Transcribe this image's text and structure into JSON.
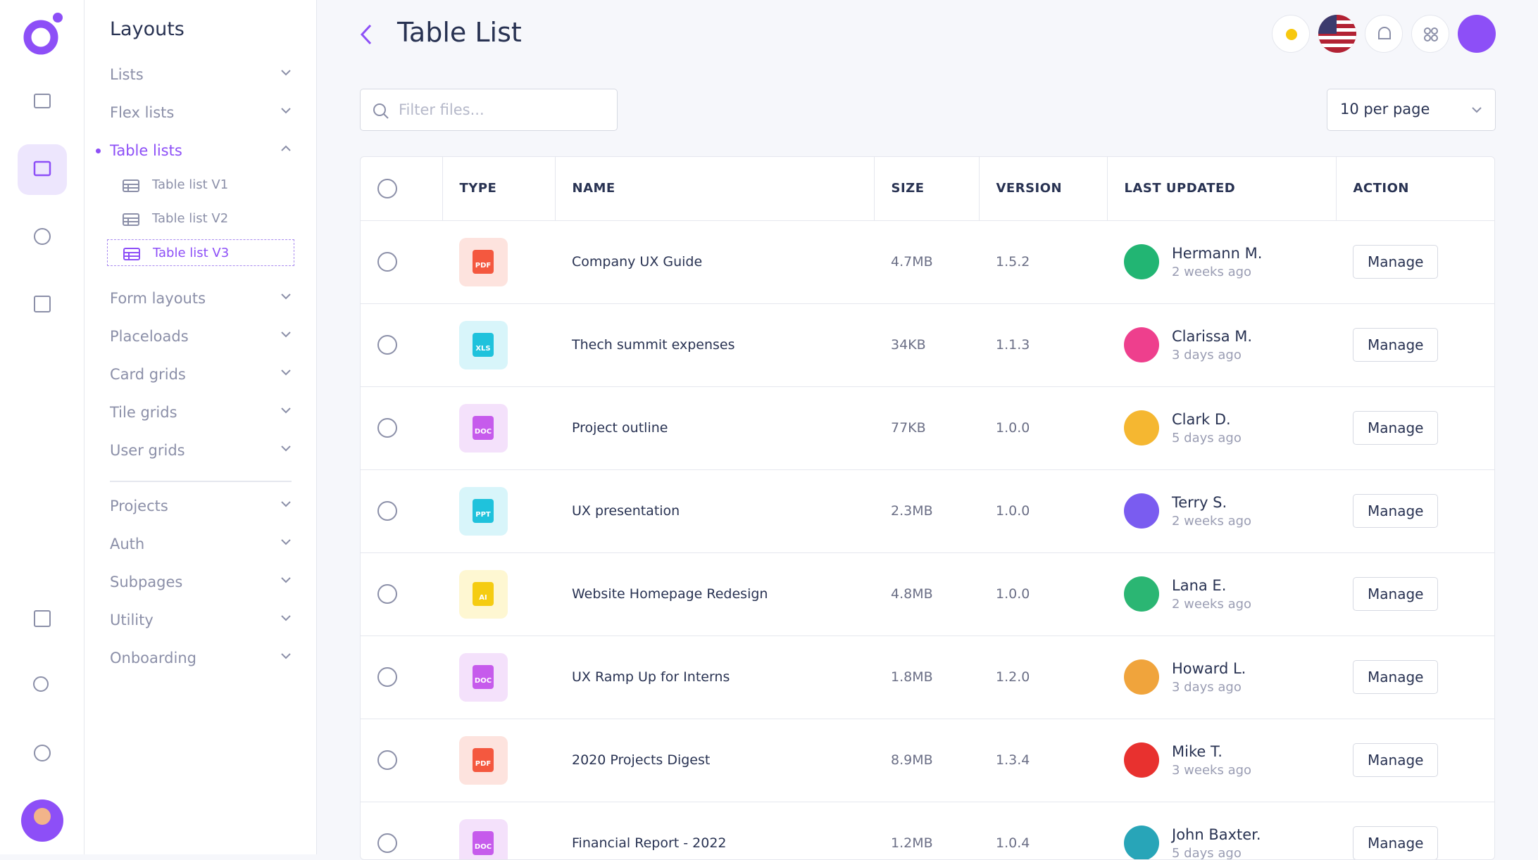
{
  "sidebar": {
    "title": "Layouts",
    "menu": [
      {
        "label": "Lists"
      },
      {
        "label": "Flex lists"
      },
      {
        "label": "Table lists",
        "open": true,
        "children": [
          "Table list V1",
          "Table list V2",
          "Table list V3"
        ],
        "active": 2
      },
      {
        "label": "Form layouts"
      },
      {
        "label": "Placeloads"
      },
      {
        "label": "Card grids"
      },
      {
        "label": "Tile grids"
      },
      {
        "label": "User grids"
      }
    ],
    "menu2": [
      {
        "label": "Projects"
      },
      {
        "label": "Auth"
      },
      {
        "label": "Subpages"
      },
      {
        "label": "Utility"
      },
      {
        "label": "Onboarding"
      }
    ]
  },
  "header": {
    "title": "Table List"
  },
  "toolbar": {
    "filter_placeholder": "Filter files...",
    "per_page": "10 per page"
  },
  "table": {
    "columns": [
      "TYPE",
      "NAME",
      "SIZE",
      "VERSION",
      "LAST UPDATED",
      "ACTION"
    ],
    "rows": [
      {
        "type": "PDF",
        "bg": "#fde3de",
        "fg": "#f4583f",
        "name": "Company UX Guide",
        "size": "4.7MB",
        "version": "1.5.2",
        "user": "Hermann M.",
        "time": "2 weeks ago",
        "action": "Manage",
        "avatar": "#22b573"
      },
      {
        "type": "XLS",
        "bg": "#d8f5fa",
        "fg": "#1fc2dc",
        "name": "Thech summit expenses",
        "size": "34KB",
        "version": "1.1.3",
        "user": "Clarissa M.",
        "time": "3 days ago",
        "action": "Manage",
        "avatar": "#ee3f8d"
      },
      {
        "type": "DOC",
        "bg": "#f4e1fb",
        "fg": "#c65bec",
        "name": "Project outline",
        "size": "77KB",
        "version": "1.0.0",
        "user": "Clark D.",
        "time": "5 days ago",
        "action": "Manage",
        "avatar": "#f5b731"
      },
      {
        "type": "PPT",
        "bg": "#d8f5fa",
        "fg": "#1fc2dc",
        "name": "UX presentation",
        "size": "2.3MB",
        "version": "1.0.0",
        "user": "Terry S.",
        "time": "2 weeks ago",
        "action": "Manage",
        "avatar": "#7a5cf0"
      },
      {
        "type": "AI",
        "bg": "#fef7d2",
        "fg": "#f5cc12",
        "name": "Website Homepage Redesign",
        "size": "4.8MB",
        "version": "1.0.0",
        "user": "Lana E.",
        "time": "2 weeks ago",
        "action": "Manage",
        "avatar": "#2bb673"
      },
      {
        "type": "DOC",
        "bg": "#f4e1fb",
        "fg": "#c65bec",
        "name": "UX Ramp Up for Interns",
        "size": "1.8MB",
        "version": "1.2.0",
        "user": "Howard L.",
        "time": "3 days ago",
        "action": "Manage",
        "avatar": "#f0a43c"
      },
      {
        "type": "PDF",
        "bg": "#fde3de",
        "fg": "#f4583f",
        "name": "2020 Projects Digest",
        "size": "8.9MB",
        "version": "1.3.4",
        "user": "Mike T.",
        "time": "3 weeks ago",
        "action": "Manage",
        "avatar": "#e8312f"
      },
      {
        "type": "DOC",
        "bg": "#f4e1fb",
        "fg": "#c65bec",
        "name": "Financial Report - 2022",
        "size": "1.2MB",
        "version": "1.0.4",
        "user": "John Baxter.",
        "time": "5 days ago",
        "action": "Manage",
        "avatar": "#28a5b8"
      }
    ]
  }
}
